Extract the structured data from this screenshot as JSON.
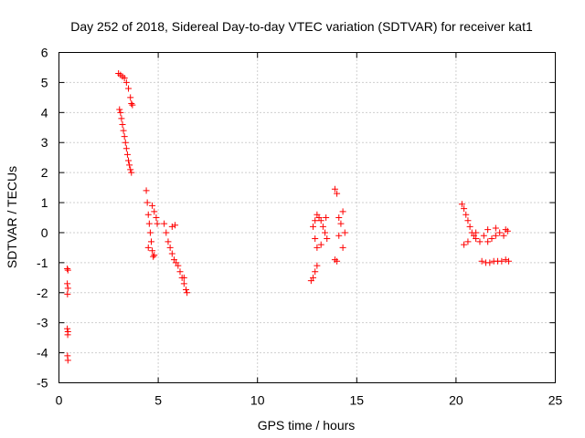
{
  "chart_data": {
    "type": "scatter",
    "title": "Day 252 of 2018, Sidereal Day-to-day VTEC variation (SDTVAR) for receiver kat1",
    "xlabel": "GPS time / hours",
    "ylabel": "SDTVAR / TECUs",
    "xlim": [
      0,
      25
    ],
    "ylim": [
      -5,
      6
    ],
    "xticks": [
      0,
      5,
      10,
      15,
      20,
      25
    ],
    "yticks": [
      -5,
      -4,
      -3,
      -2,
      -1,
      0,
      1,
      2,
      3,
      4,
      5,
      6
    ],
    "grid": true,
    "marker": "plus",
    "colors": {
      "series": "#ff0000",
      "grid": "#a0a0a0",
      "axis": "#000000"
    },
    "series": [
      {
        "name": "kat1",
        "points": [
          [
            0.42,
            -1.2
          ],
          [
            0.45,
            -1.25
          ],
          [
            0.42,
            -1.7
          ],
          [
            0.45,
            -1.85
          ],
          [
            0.43,
            -2.05
          ],
          [
            0.42,
            -3.2
          ],
          [
            0.45,
            -3.3
          ],
          [
            0.44,
            -3.4
          ],
          [
            0.43,
            -4.1
          ],
          [
            0.45,
            -4.25
          ],
          [
            3.0,
            5.3
          ],
          [
            3.1,
            5.25
          ],
          [
            3.2,
            5.2
          ],
          [
            3.3,
            5.15
          ],
          [
            3.4,
            5.0
          ],
          [
            3.5,
            4.8
          ],
          [
            3.6,
            4.5
          ],
          [
            3.65,
            4.3
          ],
          [
            3.7,
            4.25
          ],
          [
            3.05,
            4.1
          ],
          [
            3.1,
            4.0
          ],
          [
            3.15,
            3.8
          ],
          [
            3.2,
            3.6
          ],
          [
            3.25,
            3.4
          ],
          [
            3.3,
            3.2
          ],
          [
            3.35,
            3.0
          ],
          [
            3.4,
            2.8
          ],
          [
            3.45,
            2.6
          ],
          [
            3.5,
            2.4
          ],
          [
            3.55,
            2.25
          ],
          [
            3.6,
            2.1
          ],
          [
            3.65,
            2.0
          ],
          [
            4.4,
            1.4
          ],
          [
            4.45,
            1.0
          ],
          [
            4.5,
            0.6
          ],
          [
            4.55,
            0.3
          ],
          [
            4.6,
            0.0
          ],
          [
            4.65,
            -0.3
          ],
          [
            4.7,
            -0.6
          ],
          [
            4.75,
            -0.8
          ],
          [
            4.8,
            -0.75
          ],
          [
            4.7,
            0.9
          ],
          [
            4.8,
            0.7
          ],
          [
            4.9,
            0.5
          ],
          [
            4.95,
            0.3
          ],
          [
            4.5,
            -0.5
          ],
          [
            5.3,
            0.3
          ],
          [
            5.4,
            0.0
          ],
          [
            5.5,
            -0.3
          ],
          [
            5.6,
            -0.5
          ],
          [
            5.7,
            -0.7
          ],
          [
            5.8,
            -0.9
          ],
          [
            5.9,
            -1.0
          ],
          [
            6.0,
            -1.1
          ],
          [
            6.1,
            -1.3
          ],
          [
            6.2,
            -1.5
          ],
          [
            6.3,
            -1.7
          ],
          [
            6.4,
            -1.9
          ],
          [
            6.45,
            -2.0
          ],
          [
            5.7,
            0.2
          ],
          [
            5.85,
            0.25
          ],
          [
            6.3,
            -1.5
          ],
          [
            12.7,
            -1.6
          ],
          [
            12.8,
            -1.5
          ],
          [
            12.9,
            -1.3
          ],
          [
            13.0,
            -1.1
          ],
          [
            12.8,
            0.2
          ],
          [
            12.9,
            0.4
          ],
          [
            13.0,
            0.6
          ],
          [
            13.1,
            0.5
          ],
          [
            13.2,
            0.4
          ],
          [
            13.3,
            0.2
          ],
          [
            13.4,
            0.0
          ],
          [
            13.5,
            -0.2
          ],
          [
            13.45,
            0.5
          ],
          [
            13.0,
            -0.5
          ],
          [
            12.9,
            -0.2
          ],
          [
            13.2,
            -0.4
          ],
          [
            13.9,
            1.45
          ],
          [
            14.0,
            1.3
          ],
          [
            14.1,
            0.5
          ],
          [
            13.9,
            -0.9
          ],
          [
            14.0,
            -0.95
          ],
          [
            14.2,
            0.3
          ],
          [
            14.3,
            0.7
          ],
          [
            14.4,
            0.0
          ],
          [
            14.3,
            -0.5
          ],
          [
            14.1,
            -0.1
          ],
          [
            20.3,
            0.95
          ],
          [
            20.4,
            0.8
          ],
          [
            20.5,
            0.6
          ],
          [
            20.6,
            0.4
          ],
          [
            20.7,
            0.2
          ],
          [
            20.8,
            0.0
          ],
          [
            20.9,
            -0.1
          ],
          [
            21.0,
            -0.2
          ],
          [
            21.2,
            -0.3
          ],
          [
            21.4,
            -0.1
          ],
          [
            21.6,
            -0.3
          ],
          [
            21.8,
            -0.2
          ],
          [
            22.0,
            -0.1
          ],
          [
            22.2,
            0.0
          ],
          [
            22.4,
            -0.1
          ],
          [
            22.6,
            0.05
          ],
          [
            21.3,
            -0.95
          ],
          [
            21.5,
            -1.0
          ],
          [
            21.7,
            -1.0
          ],
          [
            21.9,
            -0.95
          ],
          [
            22.1,
            -0.95
          ],
          [
            22.3,
            -0.95
          ],
          [
            22.5,
            -0.9
          ],
          [
            22.65,
            -0.95
          ],
          [
            20.4,
            -0.4
          ],
          [
            20.6,
            -0.3
          ],
          [
            21.0,
            0.0
          ],
          [
            21.6,
            0.1
          ],
          [
            22.0,
            0.15
          ],
          [
            22.5,
            0.1
          ]
        ]
      }
    ]
  }
}
